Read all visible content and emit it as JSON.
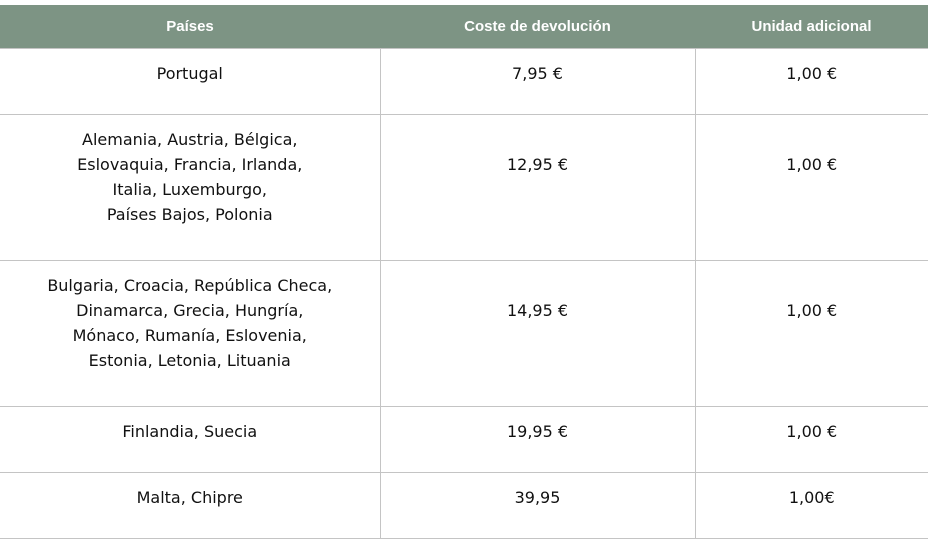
{
  "table": {
    "header": [
      "Países",
      "Coste de devolución",
      "Unidad adicional"
    ],
    "rows": [
      [
        [
          "Portugal"
        ],
        [
          "7,95 €"
        ],
        [
          "1,00 €"
        ]
      ],
      [
        [
          "Alemania, Austria, Bélgica,",
          "Eslovaquia, Francia, Irlanda,",
          "Italia, Luxemburgo,",
          "Países Bajos, Polonia"
        ],
        [
          "12,95 €"
        ],
        [
          "1,00 €"
        ]
      ],
      [
        [
          "Bulgaria, Croacia, República Checa,",
          "Dinamarca, Grecia, Hungría,",
          "Mónaco, Rumanía, Eslovenia,",
          "Estonia, Letonia, Lituania"
        ],
        [
          "14,95 €"
        ],
        [
          "1,00 €"
        ]
      ],
      [
        [
          "Finlandia, Suecia"
        ],
        [
          "19,95 €"
        ],
        [
          "1,00 €"
        ]
      ],
      [
        [
          "Malta, Chipre"
        ],
        [
          "39,95"
        ],
        [
          "1,00€"
        ]
      ]
    ]
  }
}
